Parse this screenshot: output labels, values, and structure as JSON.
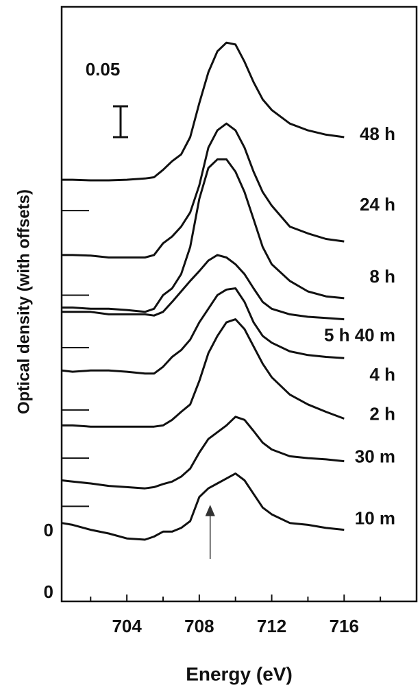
{
  "chart_data": {
    "type": "line",
    "ylabel": "Optical density (with offsets)",
    "xlabel": "Energy (eV)",
    "xlim": [
      700.4,
      720
    ],
    "xticks": [
      704,
      708,
      712,
      716
    ],
    "minor_xticks": [
      702,
      706,
      710,
      714,
      718
    ],
    "ylim": [
      -0.013,
      0.95
    ],
    "yticks": [
      {
        "value": 0,
        "label": "0"
      },
      {
        "value": 0.1,
        "label": "0"
      }
    ],
    "minor_yticks": [
      0.141,
      0.219,
      0.297,
      0.398,
      0.483,
      0.62
    ],
    "scale_bar": {
      "label": "0.05",
      "value": 0.05
    },
    "arrow": {
      "x": 708.6
    },
    "x": [
      700.4,
      701,
      702,
      703,
      704,
      705,
      705.5,
      706,
      706.5,
      707,
      707.5,
      708,
      708.5,
      709,
      709.5,
      710,
      710.5,
      711,
      711.5,
      712,
      713,
      714,
      715,
      716
    ],
    "series": [
      {
        "name": "48 h",
        "color": "#111111",
        "values": [
          0.67,
          0.67,
          0.669,
          0.669,
          0.67,
          0.672,
          0.674,
          0.686,
          0.7,
          0.711,
          0.739,
          0.794,
          0.844,
          0.878,
          0.892,
          0.889,
          0.861,
          0.828,
          0.8,
          0.783,
          0.761,
          0.75,
          0.743,
          0.739
        ]
      },
      {
        "name": "24 h",
        "color": "#111111",
        "values": [
          0.548,
          0.548,
          0.547,
          0.544,
          0.544,
          0.544,
          0.548,
          0.567,
          0.578,
          0.594,
          0.617,
          0.661,
          0.722,
          0.75,
          0.761,
          0.75,
          0.722,
          0.683,
          0.65,
          0.628,
          0.594,
          0.583,
          0.574,
          0.57
        ]
      },
      {
        "name": "8 h",
        "color": "#111111",
        "values": [
          0.463,
          0.463,
          0.461,
          0.461,
          0.459,
          0.456,
          0.461,
          0.483,
          0.494,
          0.517,
          0.561,
          0.639,
          0.689,
          0.703,
          0.703,
          0.683,
          0.65,
          0.606,
          0.561,
          0.533,
          0.506,
          0.489,
          0.481,
          0.478
        ]
      },
      {
        "name": "5 h 40 m",
        "color": "#111111",
        "values": [
          0.456,
          0.456,
          0.456,
          0.452,
          0.452,
          0.452,
          0.45,
          0.456,
          0.472,
          0.489,
          0.506,
          0.522,
          0.539,
          0.548,
          0.544,
          0.533,
          0.517,
          0.494,
          0.472,
          0.461,
          0.452,
          0.448,
          0.446,
          0.444
        ]
      },
      {
        "name": "4 h",
        "color": "#111111",
        "values": [
          0.361,
          0.359,
          0.361,
          0.361,
          0.359,
          0.356,
          0.356,
          0.367,
          0.383,
          0.394,
          0.411,
          0.439,
          0.461,
          0.483,
          0.492,
          0.494,
          0.472,
          0.439,
          0.417,
          0.406,
          0.392,
          0.386,
          0.383,
          0.381
        ]
      },
      {
        "name": "2 h",
        "color": "#111111",
        "values": [
          0.272,
          0.272,
          0.27,
          0.27,
          0.27,
          0.27,
          0.27,
          0.272,
          0.281,
          0.294,
          0.306,
          0.344,
          0.389,
          0.417,
          0.439,
          0.444,
          0.428,
          0.4,
          0.372,
          0.35,
          0.322,
          0.306,
          0.294,
          0.283
        ]
      },
      {
        "name": "30 m",
        "color": "#111111",
        "values": [
          0.183,
          0.181,
          0.178,
          0.174,
          0.172,
          0.17,
          0.172,
          0.177,
          0.181,
          0.189,
          0.202,
          0.228,
          0.25,
          0.261,
          0.272,
          0.286,
          0.281,
          0.263,
          0.244,
          0.233,
          0.222,
          0.219,
          0.217,
          0.214
        ]
      },
      {
        "name": "10 m",
        "color": "#111111",
        "values": [
          0.114,
          0.111,
          0.103,
          0.097,
          0.089,
          0.087,
          0.092,
          0.1,
          0.1,
          0.106,
          0.117,
          0.156,
          0.17,
          0.178,
          0.186,
          0.194,
          0.183,
          0.161,
          0.139,
          0.128,
          0.114,
          0.111,
          0.106,
          0.103
        ]
      }
    ]
  }
}
